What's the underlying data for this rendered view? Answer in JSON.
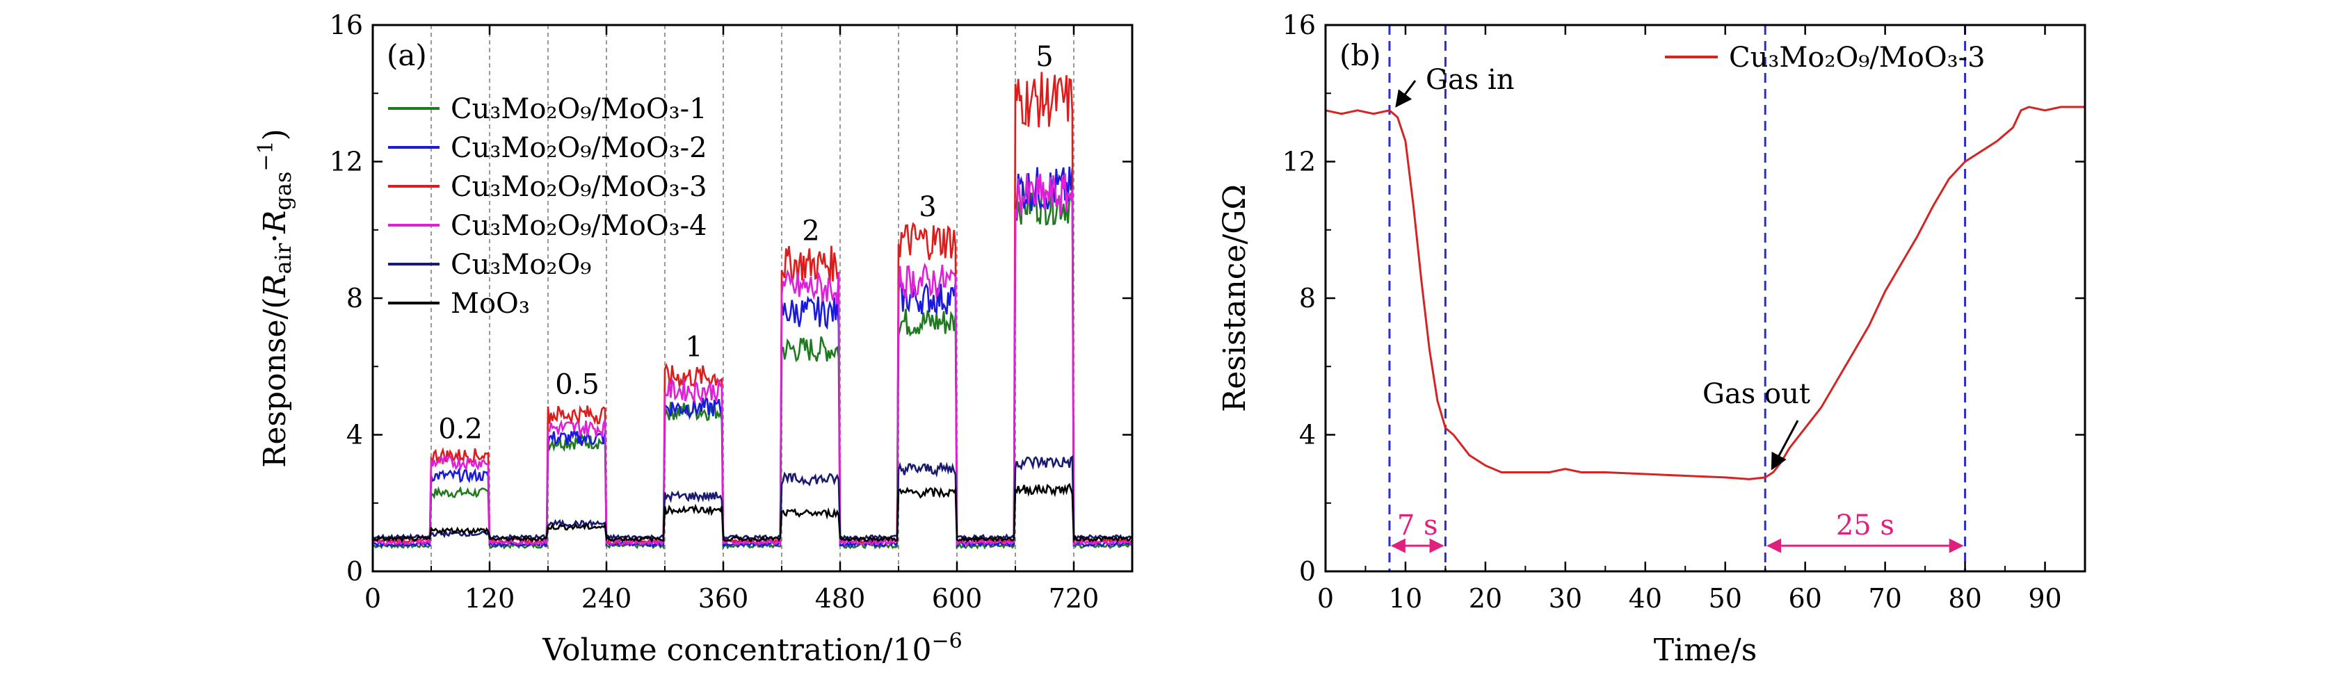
{
  "chart_data": [
    {
      "panel_label": "(a)",
      "type": "line",
      "xlabel": "Volume concentration/10⁻⁶",
      "ylabel": "Response/(Rₐᵢᵣ·Rᵧₐₛ⁻¹)",
      "ylabel_parts": {
        "pre": "Response/(",
        "r1": "R",
        "s1": "air",
        "mid": "·",
        "r2": "R",
        "s2": "gas",
        "sup": "−1",
        "post": ")"
      },
      "xlabel_parts": {
        "main": "Volume concentration/10",
        "sup": "−6"
      },
      "xlim": [
        0,
        780
      ],
      "ylim": [
        0,
        16
      ],
      "xticks": [
        "0",
        "120",
        "240",
        "360",
        "480",
        "600",
        "720"
      ],
      "xtick_values": [
        0,
        120,
        240,
        360,
        480,
        600,
        720
      ],
      "yticks": [
        "0",
        "4",
        "8",
        "12",
        "16"
      ],
      "ytick_values": [
        0,
        4,
        8,
        12,
        16
      ],
      "grid": false,
      "legend_position": "top-left",
      "exposure_windows": [
        [
          60,
          120
        ],
        [
          180,
          240
        ],
        [
          300,
          360
        ],
        [
          420,
          480
        ],
        [
          540,
          600
        ],
        [
          660,
          720
        ]
      ],
      "window_labels": [
        "0.2",
        "0.5",
        "1",
        "2",
        "3",
        "5"
      ],
      "window_label_y": [
        3.9,
        5.2,
        6.3,
        9.7,
        10.4,
        14.8
      ],
      "baseline": 0.95,
      "series": [
        {
          "name": "Cu₃Mo₂O₉/MoO₃-1",
          "color": "#1f7a1f",
          "plateaus": [
            2.3,
            3.8,
            4.7,
            6.5,
            7.3,
            10.8
          ],
          "base": 0.75
        },
        {
          "name": "Cu₃Mo₂O₉/MoO₃-2",
          "color": "#1a1adb",
          "plateaus": [
            2.8,
            3.9,
            4.8,
            7.6,
            8.0,
            11.2
          ],
          "base": 0.8
        },
        {
          "name": "Cu₃Mo₂O₉/MoO₃-3",
          "color": "#dd1c1c",
          "plateaus": [
            3.4,
            4.6,
            5.7,
            9.0,
            9.7,
            13.8
          ],
          "base": 0.9
        },
        {
          "name": "Cu₃Mo₂O₉/MoO₃-4",
          "color": "#e020d8",
          "plateaus": [
            3.2,
            4.2,
            5.3,
            8.3,
            8.5,
            11.0
          ],
          "base": 0.85
        },
        {
          "name": "Cu₃Mo₂O₉",
          "color": "#1a1a6e",
          "plateaus": [
            1.1,
            1.4,
            2.2,
            2.7,
            3.0,
            3.2
          ],
          "base": 1.0
        },
        {
          "name": "MoO₃",
          "color": "#000000",
          "plateaus": [
            1.2,
            1.3,
            1.8,
            1.7,
            2.3,
            2.4
          ],
          "base": 0.95
        }
      ]
    },
    {
      "panel_label": "(b)",
      "type": "line",
      "xlabel": "Time/s",
      "ylabel": "Resistance/GΩ",
      "xlim": [
        0,
        95
      ],
      "ylim": [
        0,
        16
      ],
      "xticks": [
        "0",
        "10",
        "20",
        "30",
        "40",
        "50",
        "60",
        "70",
        "80",
        "90"
      ],
      "xtick_values": [
        0,
        10,
        20,
        30,
        40,
        50,
        60,
        70,
        80,
        90
      ],
      "yticks": [
        "0",
        "4",
        "8",
        "12",
        "16"
      ],
      "ytick_values": [
        0,
        4,
        8,
        12,
        16
      ],
      "grid": false,
      "legend_position": "top-right",
      "series": [
        {
          "name": "Cu₃Mo₂O₉/MoO₃-3",
          "color": "#d42424",
          "x": [
            0,
            2,
            4,
            6,
            8,
            9,
            10,
            11,
            12,
            13,
            14,
            15,
            16,
            17,
            18,
            20,
            22,
            25,
            28,
            30,
            32,
            35,
            40,
            45,
            50,
            53,
            55,
            56,
            57,
            58,
            60,
            62,
            64,
            66,
            68,
            70,
            72,
            74,
            76,
            78,
            80,
            82,
            84,
            85,
            86,
            87,
            88,
            90,
            92,
            95
          ],
          "y": [
            13.5,
            13.4,
            13.5,
            13.4,
            13.5,
            13.3,
            12.6,
            10.7,
            8.5,
            6.5,
            5.0,
            4.2,
            4.0,
            3.7,
            3.4,
            3.1,
            2.9,
            2.9,
            2.9,
            3.0,
            2.9,
            2.9,
            2.85,
            2.8,
            2.75,
            2.7,
            2.75,
            2.9,
            3.2,
            3.6,
            4.2,
            4.8,
            5.6,
            6.4,
            7.2,
            8.2,
            9.0,
            9.8,
            10.7,
            11.5,
            12.0,
            12.3,
            12.6,
            12.8,
            13.0,
            13.5,
            13.6,
            13.5,
            13.6,
            13.6
          ]
        }
      ],
      "vlines": [
        8,
        15,
        55,
        80
      ],
      "spans": [
        {
          "from": 8,
          "to": 15,
          "label": "7 s",
          "color": "#e0207f"
        },
        {
          "from": 55,
          "to": 80,
          "label": "25 s",
          "color": "#e0207f"
        }
      ],
      "annotations": [
        {
          "text": "Gas in",
          "x": 8.5,
          "y": 13.5
        },
        {
          "text": "Gas out",
          "x": 55.5,
          "y": 2.8
        }
      ]
    }
  ]
}
